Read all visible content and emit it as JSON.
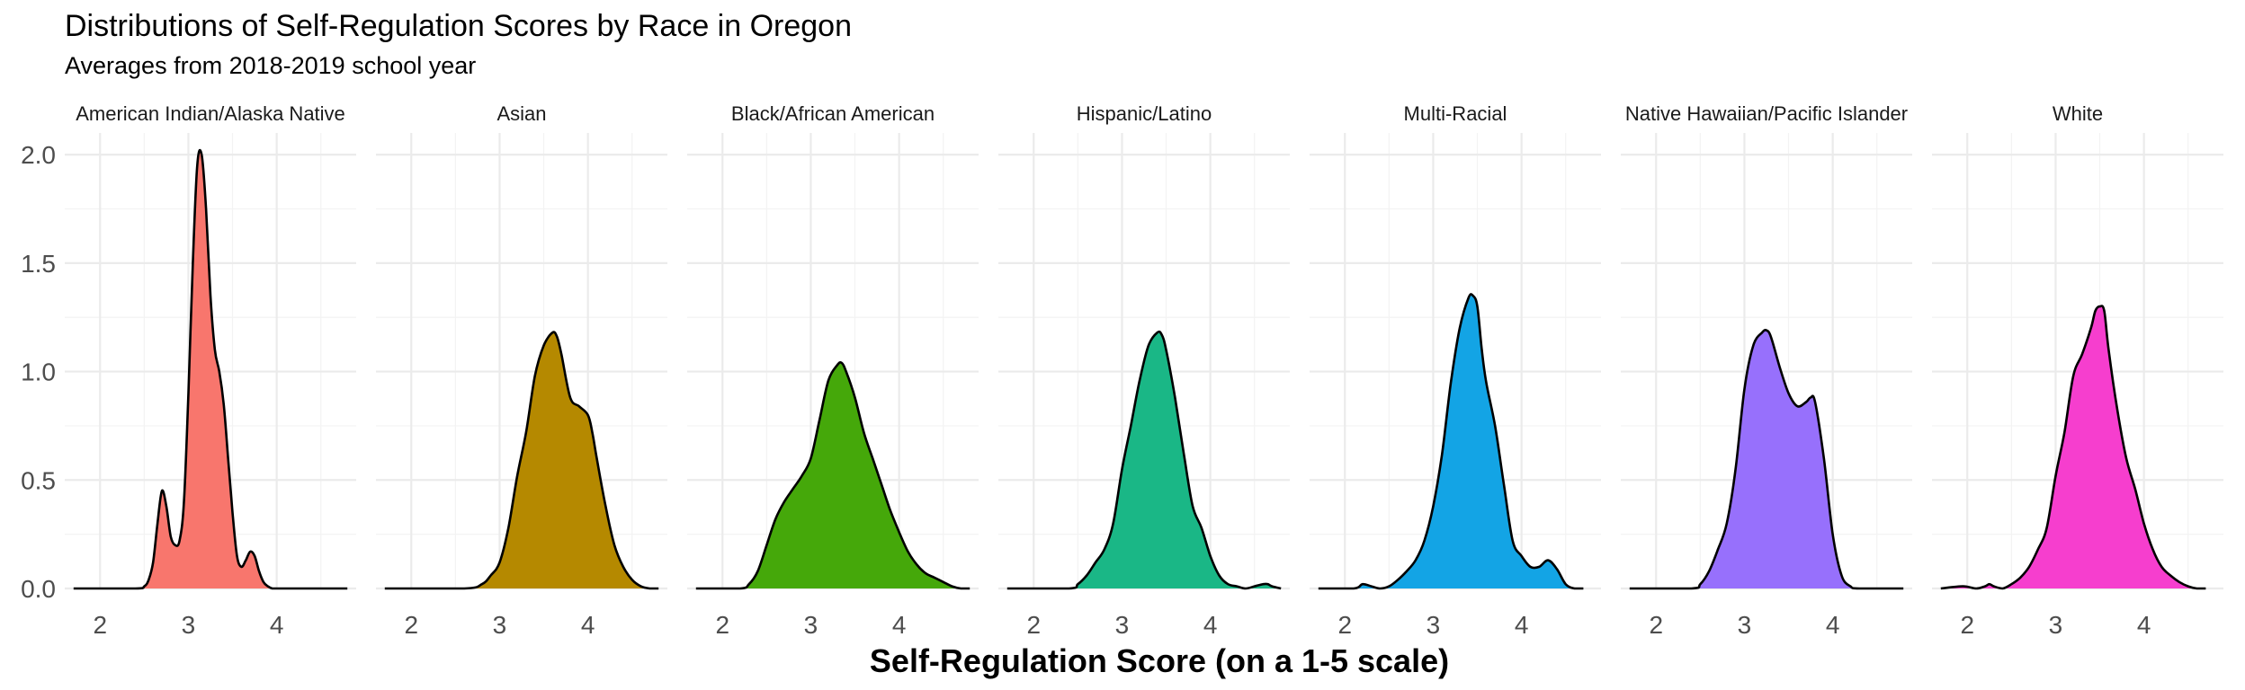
{
  "chart_data": {
    "type": "area",
    "title": "Distributions of Self-Regulation Scores by Race in Oregon",
    "subtitle": "Averages from 2018-2019 school year",
    "xlabel": "Self-Regulation Score (on a 1-5 scale)",
    "ylabel": "",
    "xlim": [
      1.6,
      4.9
    ],
    "ylim": [
      0,
      2.1
    ],
    "x_ticks": [
      2,
      3,
      4
    ],
    "x_tick_labels": [
      "2",
      "3",
      "4"
    ],
    "y_ticks": [
      0,
      0.5,
      1,
      1.5,
      2
    ],
    "y_tick_labels": [
      "0.0",
      "0.5",
      "1.0",
      "1.5",
      "2.0"
    ],
    "grid": true,
    "legend": "none",
    "panels": [
      {
        "name": "American Indian/Alaska Native",
        "color": "#F8766D",
        "x": [
          1.7,
          2.4,
          2.5,
          2.55,
          2.6,
          2.65,
          2.7,
          2.75,
          2.8,
          2.85,
          2.9,
          2.95,
          3.0,
          3.05,
          3.1,
          3.15,
          3.2,
          3.25,
          3.3,
          3.35,
          3.4,
          3.45,
          3.5,
          3.55,
          3.6,
          3.65,
          3.7,
          3.75,
          3.8,
          3.85,
          3.9,
          3.95,
          4.0,
          4.05,
          4.1,
          4.15,
          4.2,
          4.3,
          4.8
        ],
        "y": [
          0,
          0,
          0.01,
          0.04,
          0.12,
          0.3,
          0.45,
          0.38,
          0.24,
          0.2,
          0.22,
          0.4,
          0.9,
          1.5,
          1.95,
          2.0,
          1.75,
          1.35,
          1.1,
          1.0,
          0.85,
          0.6,
          0.35,
          0.15,
          0.1,
          0.13,
          0.17,
          0.15,
          0.08,
          0.03,
          0.01,
          0,
          0,
          0,
          0,
          0,
          0,
          0,
          0
        ]
      },
      {
        "name": "Asian",
        "color": "#B58900",
        "x": [
          1.7,
          2.6,
          2.8,
          2.9,
          3.0,
          3.1,
          3.2,
          3.3,
          3.4,
          3.5,
          3.6,
          3.65,
          3.7,
          3.8,
          3.9,
          4.0,
          4.05,
          4.1,
          4.2,
          4.3,
          4.4,
          4.5,
          4.6,
          4.7,
          4.8
        ],
        "y": [
          0,
          0,
          0.02,
          0.06,
          0.12,
          0.28,
          0.52,
          0.72,
          0.98,
          1.12,
          1.18,
          1.16,
          1.08,
          0.88,
          0.84,
          0.8,
          0.72,
          0.6,
          0.38,
          0.2,
          0.1,
          0.04,
          0.01,
          0,
          0
        ]
      },
      {
        "name": "Black/African American",
        "color": "#45A80A",
        "x": [
          1.7,
          2.2,
          2.3,
          2.4,
          2.5,
          2.6,
          2.7,
          2.8,
          2.9,
          3.0,
          3.1,
          3.2,
          3.3,
          3.35,
          3.4,
          3.5,
          3.6,
          3.7,
          3.8,
          3.9,
          4.0,
          4.1,
          4.2,
          4.3,
          4.4,
          4.5,
          4.6,
          4.7,
          4.8
        ],
        "y": [
          0,
          0,
          0.02,
          0.08,
          0.2,
          0.32,
          0.4,
          0.46,
          0.52,
          0.6,
          0.78,
          0.96,
          1.03,
          1.04,
          1.0,
          0.88,
          0.72,
          0.6,
          0.48,
          0.36,
          0.26,
          0.17,
          0.11,
          0.07,
          0.05,
          0.03,
          0.01,
          0,
          0
        ]
      },
      {
        "name": "Hispanic/Latino",
        "color": "#1AB786",
        "x": [
          1.7,
          2.4,
          2.5,
          2.6,
          2.7,
          2.8,
          2.9,
          3.0,
          3.1,
          3.2,
          3.3,
          3.4,
          3.45,
          3.5,
          3.6,
          3.7,
          3.8,
          3.9,
          4.0,
          4.1,
          4.2,
          4.3,
          4.4,
          4.5,
          4.6,
          4.65,
          4.7,
          4.8
        ],
        "y": [
          0,
          0,
          0.02,
          0.06,
          0.12,
          0.18,
          0.3,
          0.55,
          0.75,
          0.96,
          1.12,
          1.18,
          1.17,
          1.1,
          0.88,
          0.62,
          0.38,
          0.28,
          0.15,
          0.06,
          0.02,
          0.01,
          0,
          0.01,
          0.02,
          0.02,
          0.01,
          0
        ]
      },
      {
        "name": "Multi-Racial",
        "color": "#13A4E5",
        "x": [
          1.7,
          2.1,
          2.2,
          2.3,
          2.4,
          2.5,
          2.6,
          2.7,
          2.8,
          2.9,
          3.0,
          3.1,
          3.2,
          3.3,
          3.4,
          3.45,
          3.5,
          3.55,
          3.6,
          3.7,
          3.8,
          3.9,
          4.0,
          4.1,
          4.2,
          4.3,
          4.4,
          4.5,
          4.6,
          4.7
        ],
        "y": [
          0,
          0,
          0.02,
          0.01,
          0,
          0.01,
          0.04,
          0.08,
          0.13,
          0.22,
          0.38,
          0.62,
          0.95,
          1.2,
          1.34,
          1.35,
          1.3,
          1.1,
          0.95,
          0.75,
          0.48,
          0.22,
          0.15,
          0.1,
          0.1,
          0.13,
          0.09,
          0.02,
          0,
          0
        ]
      },
      {
        "name": "Native Hawaiian/Pacific Islander",
        "color": "#9770FC",
        "x": [
          1.7,
          2.4,
          2.5,
          2.6,
          2.7,
          2.8,
          2.9,
          3.0,
          3.1,
          3.2,
          3.25,
          3.3,
          3.4,
          3.5,
          3.6,
          3.7,
          3.75,
          3.8,
          3.9,
          4.0,
          4.1,
          4.2,
          4.3,
          4.8
        ],
        "y": [
          0,
          0,
          0.02,
          0.08,
          0.18,
          0.3,
          0.55,
          0.92,
          1.12,
          1.18,
          1.19,
          1.16,
          1.02,
          0.9,
          0.84,
          0.86,
          0.88,
          0.86,
          0.6,
          0.25,
          0.06,
          0.01,
          0,
          0
        ]
      },
      {
        "name": "White",
        "color": "#F63ECE",
        "x": [
          1.7,
          1.95,
          2.1,
          2.2,
          2.25,
          2.3,
          2.4,
          2.5,
          2.6,
          2.7,
          2.8,
          2.9,
          3.0,
          3.1,
          3.2,
          3.3,
          3.4,
          3.45,
          3.5,
          3.55,
          3.6,
          3.7,
          3.8,
          3.9,
          4.0,
          4.1,
          4.2,
          4.3,
          4.4,
          4.5,
          4.6,
          4.7
        ],
        "y": [
          0,
          0.01,
          0,
          0.01,
          0.02,
          0.01,
          0,
          0.02,
          0.05,
          0.1,
          0.18,
          0.28,
          0.52,
          0.72,
          0.98,
          1.08,
          1.2,
          1.28,
          1.3,
          1.28,
          1.1,
          0.82,
          0.6,
          0.46,
          0.3,
          0.18,
          0.1,
          0.06,
          0.03,
          0.01,
          0,
          0
        ]
      }
    ]
  }
}
